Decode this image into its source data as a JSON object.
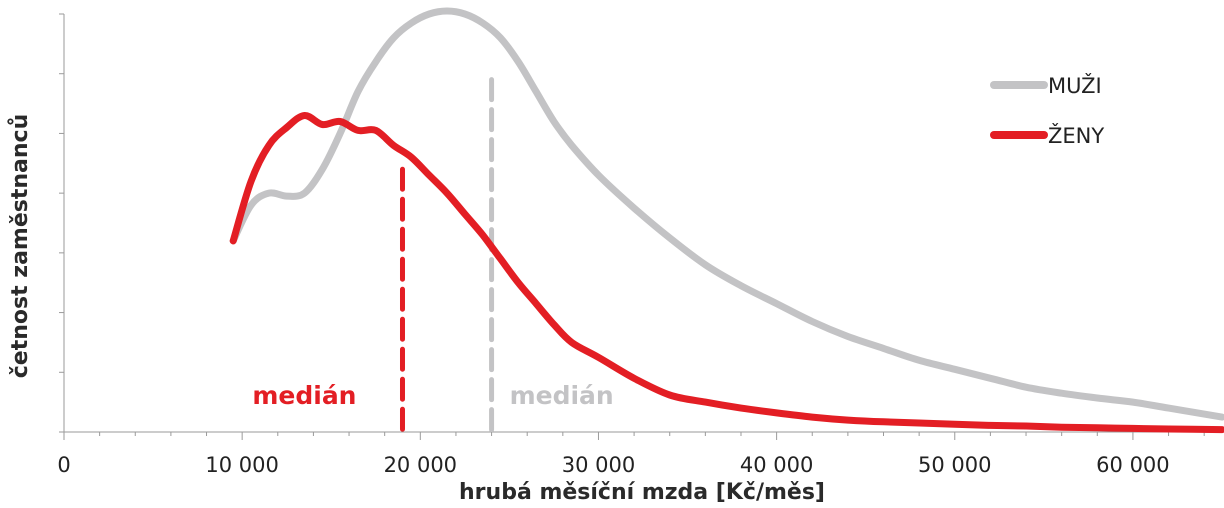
{
  "chart_data": {
    "type": "line",
    "xlabel": "hrubá měsíční mzda [Kč/měs]",
    "ylabel": "četnost zaměstnanců",
    "xlim": [
      0,
      65000
    ],
    "ylim": [
      0,
      7
    ],
    "x_ticks": [
      0,
      10000,
      20000,
      30000,
      40000,
      50000,
      60000
    ],
    "x_tick_labels": [
      "0",
      "10 000",
      "20 000",
      "30 000",
      "40 000",
      "50 000",
      "60 000"
    ],
    "x_minor_step": 2000,
    "y_ticks": [
      0,
      1,
      2,
      3,
      4,
      5,
      6,
      7
    ],
    "y_tick_labels_shown": false,
    "grid": false,
    "legend_position": "top-right",
    "series": [
      {
        "name": "MUŽI",
        "color": "#c3c3c5",
        "x": [
          9500,
          10500,
          11500,
          12500,
          13500,
          14500,
          15500,
          16500,
          17500,
          18500,
          19500,
          20500,
          21500,
          22500,
          23500,
          24500,
          25500,
          26500,
          27500,
          28500,
          30000,
          32000,
          34000,
          36000,
          38000,
          40000,
          42000,
          44000,
          46000,
          48000,
          50000,
          52000,
          54000,
          56000,
          58000,
          60000,
          62000,
          65000
        ],
        "values": [
          3.2,
          3.8,
          4.0,
          3.95,
          4.0,
          4.4,
          5.0,
          5.7,
          6.2,
          6.6,
          6.85,
          7.0,
          7.05,
          7.0,
          6.85,
          6.6,
          6.2,
          5.7,
          5.2,
          4.8,
          4.3,
          3.75,
          3.25,
          2.8,
          2.45,
          2.15,
          1.85,
          1.6,
          1.4,
          1.2,
          1.05,
          0.9,
          0.75,
          0.65,
          0.57,
          0.5,
          0.4,
          0.25
        ]
      },
      {
        "name": "ŽENY",
        "color": "#e31e24",
        "x": [
          9500,
          10500,
          11500,
          12500,
          13500,
          14500,
          15500,
          16500,
          17500,
          18500,
          19500,
          20500,
          21500,
          22500,
          23500,
          24500,
          25500,
          26500,
          27500,
          28500,
          30000,
          32000,
          34000,
          36000,
          38000,
          40000,
          42000,
          44000,
          46000,
          48000,
          50000,
          52000,
          54000,
          56000,
          58000,
          60000,
          62000,
          65000
        ],
        "values": [
          3.2,
          4.2,
          4.8,
          5.1,
          5.3,
          5.15,
          5.2,
          5.05,
          5.05,
          4.8,
          4.6,
          4.3,
          4.0,
          3.65,
          3.3,
          2.9,
          2.5,
          2.15,
          1.8,
          1.5,
          1.25,
          0.9,
          0.62,
          0.5,
          0.4,
          0.32,
          0.25,
          0.2,
          0.17,
          0.15,
          0.13,
          0.11,
          0.1,
          0.08,
          0.07,
          0.06,
          0.05,
          0.04
        ]
      }
    ],
    "legend": [
      {
        "label": "MUŽI",
        "color": "#c3c3c5"
      },
      {
        "label": "ŽENY",
        "color": "#e31e24"
      }
    ],
    "medians": [
      {
        "series": "ŽENY",
        "x": 19000,
        "label": "medián",
        "color": "#e31e24",
        "top": 4.4
      },
      {
        "series": "MUŽI",
        "x": 24000,
        "label": "medián",
        "color": "#c3c3c5",
        "top": 5.9
      }
    ]
  }
}
